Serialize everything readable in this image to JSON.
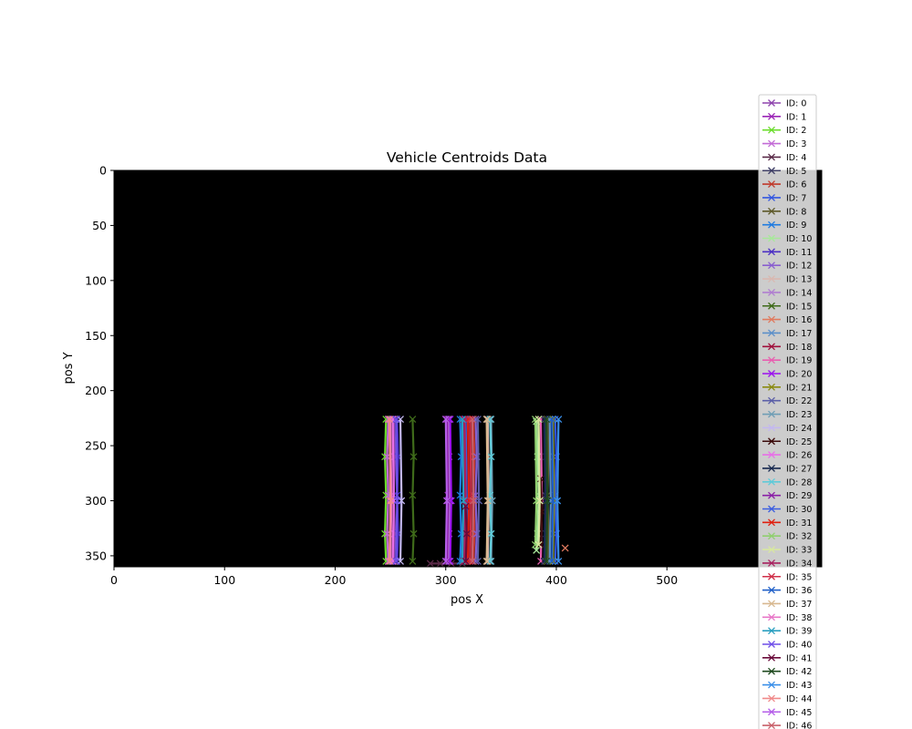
{
  "chart_data": {
    "type": "line",
    "title": "Vehicle Centroids Data",
    "xlabel": "pos X",
    "ylabel": "pos Y",
    "xlim": [
      0,
      640
    ],
    "ylim": [
      360,
      0
    ],
    "y_inverted": true,
    "background": "#000000",
    "marker": "x",
    "legend_position": "right",
    "xticks": [
      0,
      100,
      200,
      300,
      400,
      500
    ],
    "yticks": [
      0,
      50,
      100,
      150,
      200,
      250,
      300,
      350
    ],
    "series": [
      {
        "name": "ID: 0",
        "color": "#8e44ad",
        "x": [
          253,
          254,
          253,
          254,
          253
        ],
        "y": [
          226,
          260,
          295,
          330,
          355
        ]
      },
      {
        "name": "ID: 1",
        "color": "#9b26b6",
        "x": [
          302,
          303,
          302,
          303,
          302
        ],
        "y": [
          226,
          260,
          295,
          330,
          355
        ]
      },
      {
        "name": "ID: 2",
        "color": "#6bdc2c",
        "x": [
          246,
          245,
          246,
          245,
          246
        ],
        "y": [
          226,
          260,
          295,
          330,
          355
        ]
      },
      {
        "name": "ID: 3",
        "color": "#c36bd6",
        "x": [
          248,
          247,
          248,
          247,
          248
        ],
        "y": [
          226,
          260,
          295,
          330,
          355
        ]
      },
      {
        "name": "ID: 4",
        "color": "#5a2a48",
        "x": [
          286,
          295,
          305,
          315
        ],
        "y": [
          357,
          357,
          357,
          357
        ]
      },
      {
        "name": "ID: 5",
        "color": "#3f3f66",
        "x": [
          390,
          391,
          390,
          391,
          390
        ],
        "y": [
          226,
          260,
          295,
          330,
          355
        ]
      },
      {
        "name": "ID: 6",
        "color": "#c0392b",
        "x": [
          325,
          326,
          325,
          326,
          325
        ],
        "y": [
          226,
          260,
          295,
          330,
          355
        ]
      },
      {
        "name": "ID: 7",
        "color": "#3357e0",
        "x": [
          399,
          400,
          399,
          400,
          399
        ],
        "y": [
          226,
          260,
          295,
          330,
          355
        ]
      },
      {
        "name": "ID: 8",
        "color": "#5e5a2a",
        "x": [
          392,
          393,
          392,
          393,
          392
        ],
        "y": [
          226,
          260,
          295,
          330,
          355
        ]
      },
      {
        "name": "ID: 9",
        "color": "#1f7be0",
        "x": [
          313,
          314,
          313,
          314,
          313
        ],
        "y": [
          226,
          260,
          295,
          330,
          355
        ]
      },
      {
        "name": "ID: 10",
        "color": "#a8e89a",
        "x": [
          382,
          383,
          384,
          383,
          382
        ],
        "y": [
          228,
          260,
          295,
          330,
          345
        ]
      },
      {
        "name": "ID: 11",
        "color": "#4b2fc4",
        "x": [
          256,
          257,
          256,
          257,
          256
        ],
        "y": [
          226,
          260,
          295,
          330,
          355
        ]
      },
      {
        "name": "ID: 12",
        "color": "#8a5fcf",
        "x": [
          327,
          328,
          327,
          328,
          327
        ],
        "y": [
          226,
          260,
          295,
          330,
          355
        ]
      },
      {
        "name": "ID: 13",
        "color": "#d9b8b0",
        "x": [
          338,
          339,
          338
        ],
        "y": [
          226,
          300,
          355
        ]
      },
      {
        "name": "ID: 14",
        "color": "#b07ed0",
        "x": [
          303,
          304,
          303
        ],
        "y": [
          226,
          300,
          355
        ]
      },
      {
        "name": "ID: 15",
        "color": "#3f6b1a",
        "x": [
          270,
          271,
          270,
          271,
          270
        ],
        "y": [
          226,
          260,
          295,
          330,
          355
        ]
      },
      {
        "name": "ID: 16",
        "color": "#e07a5f",
        "x": [
          408
        ],
        "y": [
          343
        ]
      },
      {
        "name": "ID: 17",
        "color": "#5b8fc9",
        "x": [
          394,
          395,
          394
        ],
        "y": [
          226,
          300,
          355
        ]
      },
      {
        "name": "ID: 18",
        "color": "#a0103c",
        "x": [
          316,
          317,
          316
        ],
        "y": [
          226,
          300,
          355
        ]
      },
      {
        "name": "ID: 19",
        "color": "#e85fb0",
        "x": [
          386,
          387,
          386
        ],
        "y": [
          226,
          300,
          355
        ]
      },
      {
        "name": "ID: 20",
        "color": "#9b10ef",
        "x": [
          304,
          305,
          304
        ],
        "y": [
          226,
          300,
          355
        ]
      },
      {
        "name": "ID: 21",
        "color": "#8a8a10",
        "x": [
          397,
          398,
          397
        ],
        "y": [
          226,
          300,
          355
        ]
      },
      {
        "name": "ID: 22",
        "color": "#5b5fa8",
        "x": [
          329,
          330,
          329
        ],
        "y": [
          226,
          300,
          355
        ]
      },
      {
        "name": "ID: 23",
        "color": "#6f9eb5",
        "x": [
          341,
          342,
          341
        ],
        "y": [
          226,
          300,
          355
        ]
      },
      {
        "name": "ID: 24",
        "color": "#c3b8f0",
        "x": [
          259,
          260,
          259
        ],
        "y": [
          226,
          300,
          355
        ]
      },
      {
        "name": "ID: 25",
        "color": "#3b0a0a",
        "x": [
          386,
          387,
          386
        ],
        "y": [
          280,
          310,
          340
        ]
      },
      {
        "name": "ID: 26",
        "color": "#e86fe8",
        "x": [
          252,
          253,
          252
        ],
        "y": [
          226,
          300,
          355
        ]
      },
      {
        "name": "ID: 27",
        "color": "#16284f",
        "x": [
          389,
          390,
          389
        ],
        "y": [
          226,
          300,
          355
        ]
      },
      {
        "name": "ID: 28",
        "color": "#5fcad8",
        "x": [
          340,
          341,
          340,
          341,
          340
        ],
        "y": [
          226,
          260,
          295,
          330,
          355
        ]
      },
      {
        "name": "ID: 29",
        "color": "#8a1fa6",
        "x": [
          301,
          302,
          301
        ],
        "y": [
          226,
          300,
          355
        ]
      },
      {
        "name": "ID: 30",
        "color": "#3d5fe0",
        "x": [
          318,
          319,
          318
        ],
        "y": [
          226,
          300,
          355
        ]
      },
      {
        "name": "ID: 31",
        "color": "#e02010",
        "x": [
          320,
          321,
          320
        ],
        "y": [
          226,
          300,
          355
        ]
      },
      {
        "name": "ID: 32",
        "color": "#8fcf6f",
        "x": [
          381,
          382,
          381
        ],
        "y": [
          226,
          300,
          340
        ]
      },
      {
        "name": "ID: 33",
        "color": "#d8e8a0",
        "x": [
          384,
          385,
          384
        ],
        "y": [
          226,
          300,
          340
        ]
      },
      {
        "name": "ID: 34",
        "color": "#a8205f",
        "x": [
          317,
          318,
          317
        ],
        "y": [
          226,
          300,
          355
        ]
      },
      {
        "name": "ID: 35",
        "color": "#d0304a",
        "x": [
          322,
          323,
          322
        ],
        "y": [
          226,
          300,
          355
        ]
      },
      {
        "name": "ID: 36",
        "color": "#1f5fc8",
        "x": [
          396,
          397,
          396
        ],
        "y": [
          226,
          300,
          355
        ]
      },
      {
        "name": "ID: 37",
        "color": "#d8b890",
        "x": [
          337,
          338,
          337
        ],
        "y": [
          226,
          300,
          355
        ]
      },
      {
        "name": "ID: 38",
        "color": "#e878c8",
        "x": [
          250,
          251,
          250
        ],
        "y": [
          226,
          300,
          355
        ]
      },
      {
        "name": "ID: 39",
        "color": "#2a9fc0",
        "x": [
          315,
          316,
          315
        ],
        "y": [
          226,
          300,
          355
        ]
      },
      {
        "name": "ID: 40",
        "color": "#6f4fe8",
        "x": [
          255,
          256,
          255
        ],
        "y": [
          226,
          300,
          355
        ]
      },
      {
        "name": "ID: 41",
        "color": "#6a0a3a",
        "x": [
          318,
          319,
          318
        ],
        "y": [
          305,
          330,
          355
        ]
      },
      {
        "name": "ID: 42",
        "color": "#1f4a1f",
        "x": [
          391,
          392,
          391
        ],
        "y": [
          226,
          300,
          355
        ]
      },
      {
        "name": "ID: 43",
        "color": "#3a8fe8",
        "x": [
          402,
          401,
          402
        ],
        "y": [
          226,
          300,
          355
        ]
      },
      {
        "name": "ID: 44",
        "color": "#f08a8a",
        "x": [
          249,
          250,
          249
        ],
        "y": [
          226,
          300,
          355
        ]
      },
      {
        "name": "ID: 45",
        "color": "#b55fe8",
        "x": [
          300,
          301,
          300
        ],
        "y": [
          226,
          300,
          355
        ]
      },
      {
        "name": "ID: 46",
        "color": "#c8606a",
        "x": [
          324,
          325,
          324
        ],
        "y": [
          226,
          300,
          355
        ]
      }
    ]
  }
}
